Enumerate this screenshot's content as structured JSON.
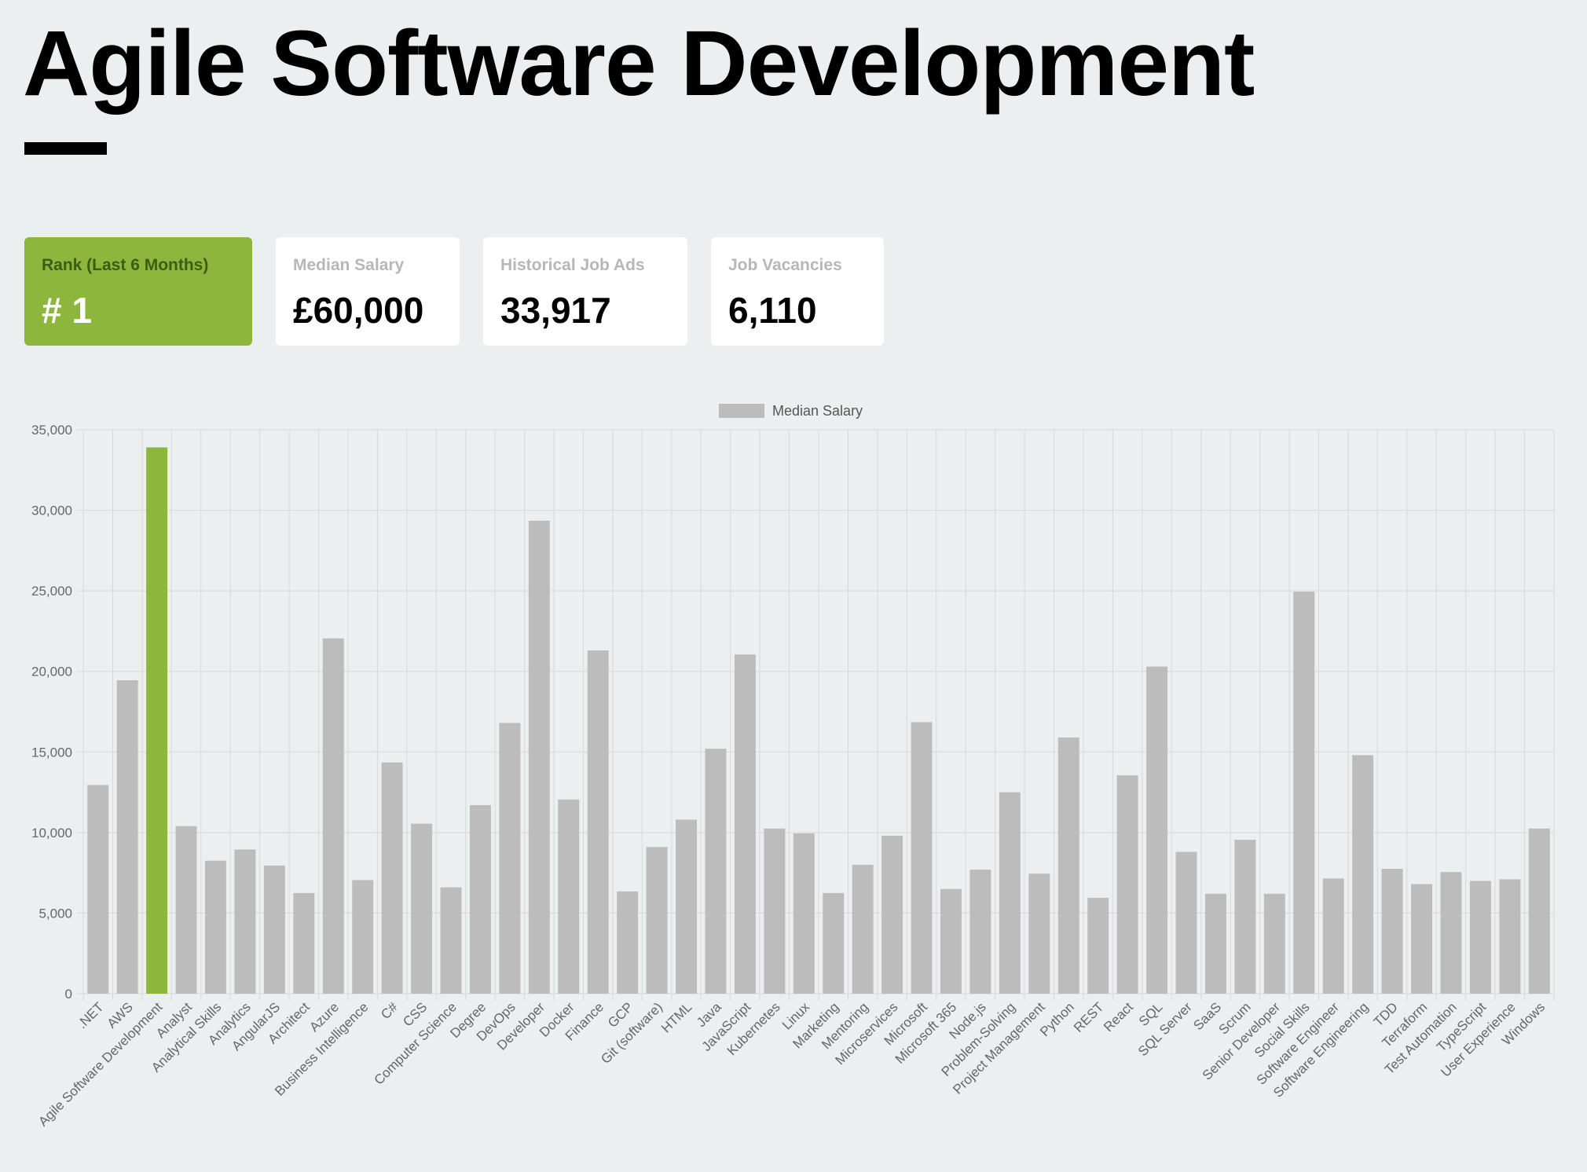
{
  "page": {
    "title": "Agile Software Development"
  },
  "cards": [
    {
      "label": "Rank (Last 6 Months)",
      "value": "# 1",
      "active": true
    },
    {
      "label": "Median Salary",
      "value": "£60,000",
      "active": false
    },
    {
      "label": "Historical Job Ads",
      "value": "33,917",
      "active": false
    },
    {
      "label": "Job Vacancies",
      "value": "6,110",
      "active": false
    }
  ],
  "colors": {
    "highlight": "#8cb63c",
    "bar": "#bcbcbc",
    "background": "#ecefef"
  },
  "chart_data": {
    "type": "bar",
    "title": "",
    "xlabel": "",
    "ylabel": "",
    "legend": {
      "label": "Median Salary",
      "position": "top"
    },
    "grid": true,
    "ylim": [
      0,
      35000
    ],
    "yticks": [
      0,
      5000,
      10000,
      15000,
      20000,
      25000,
      30000,
      35000
    ],
    "ytick_labels": [
      "0",
      "5,000",
      "10,000",
      "15,000",
      "20,000",
      "25,000",
      "30,000",
      "35,000"
    ],
    "highlight_category": "Agile Software Development",
    "categories": [
      ".NET",
      "AWS",
      "Agile Software Development",
      "Analyst",
      "Analytical Skills",
      "Analytics",
      "AngularJS",
      "Architect",
      "Azure",
      "Business Intelligence",
      "C#",
      "CSS",
      "Computer Science",
      "Degree",
      "DevOps",
      "Developer",
      "Docker",
      "Finance",
      "GCP",
      "Git (software)",
      "HTML",
      "Java",
      "JavaScript",
      "Kubernetes",
      "Linux",
      "Marketing",
      "Mentoring",
      "Microservices",
      "Microsoft",
      "Microsoft 365",
      "Node.js",
      "Problem-Solving",
      "Project Management",
      "Python",
      "REST",
      "React",
      "SQL",
      "SQL Server",
      "SaaS",
      "Scrum",
      "Senior Developer",
      "Social Skills",
      "Software Engineer",
      "Software Engineering",
      "TDD",
      "Terraform",
      "Test Automation",
      "TypeScript",
      "User Experience",
      "Windows"
    ],
    "series": [
      {
        "name": "Median Salary",
        "values": [
          12950,
          19450,
          33900,
          10400,
          8250,
          8950,
          7950,
          6250,
          22050,
          7050,
          14350,
          10550,
          6600,
          11700,
          16800,
          29350,
          12050,
          21300,
          6350,
          9100,
          10800,
          15200,
          21050,
          10250,
          9950,
          6250,
          8000,
          9800,
          16850,
          6500,
          7700,
          12500,
          7450,
          15900,
          5950,
          13550,
          20300,
          8800,
          6200,
          9550,
          6200,
          24950,
          7150,
          14800,
          7750,
          6800,
          7550,
          7000,
          7100,
          10250
        ]
      }
    ]
  }
}
